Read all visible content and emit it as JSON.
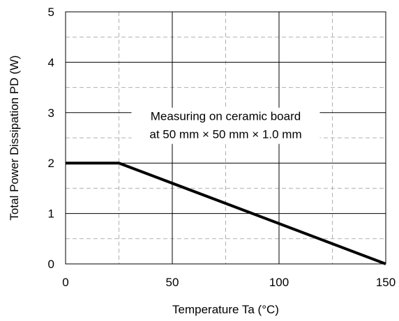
{
  "chart_data": {
    "type": "line",
    "title": "",
    "xlabel": "Temperature Ta (°C)",
    "ylabel": "Total Power Dissipation PD (W)",
    "xlim": [
      0,
      150
    ],
    "ylim": [
      0,
      5
    ],
    "x_ticks": [
      0,
      50,
      100,
      150
    ],
    "y_ticks": [
      0,
      1,
      2,
      3,
      4,
      5
    ],
    "x_minor_ticks": [
      25,
      75,
      125
    ],
    "y_minor_ticks": [
      0.5,
      1.5,
      2.5,
      3.5,
      4.5
    ],
    "grid": true,
    "series": [
      {
        "name": "",
        "color": "#000000",
        "points": [
          [
            0,
            2.0
          ],
          [
            25,
            2.0
          ],
          [
            150,
            0.0
          ]
        ]
      }
    ],
    "annotation": {
      "line1": "Measuring on ceramic board",
      "line2": "at 50 mm × 50 mm × 1.0 mm",
      "x": 75,
      "y": 2.85
    }
  }
}
